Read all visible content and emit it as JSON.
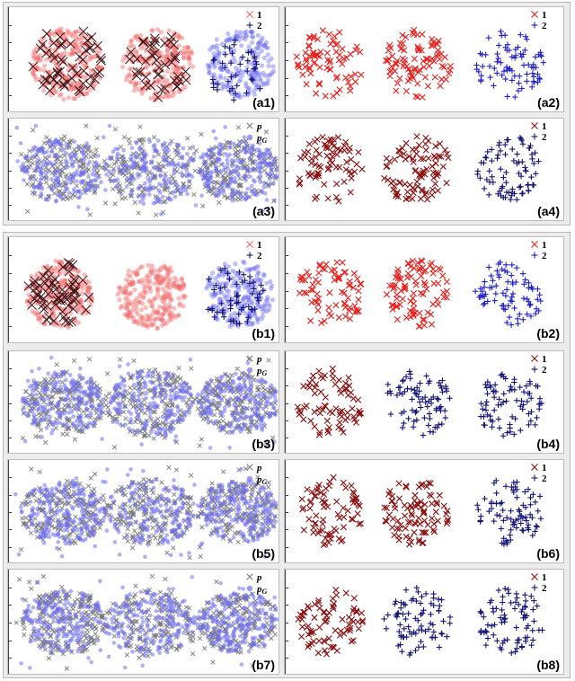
{
  "colors": {
    "red_light": "#f26a6a",
    "red": "#e8201e",
    "dark_red": "#8b1010",
    "dark_x": "#3a0d10",
    "blue": "#2020c8",
    "blue_light": "#6f6ff0",
    "navy": "#14147a",
    "gray": "#777777"
  },
  "chart_data": [
    {
      "panel": "a1",
      "label": "(a1)",
      "type": "scatter",
      "legend": [
        "1",
        "2"
      ],
      "clusters": [
        {
          "marker": "dot",
          "color": "red_light"
        },
        {
          "marker": "x",
          "color": "dark_x"
        },
        {
          "marker": "dot",
          "color": "red_light"
        },
        {
          "marker": "x",
          "color": "dark_x"
        },
        {
          "marker": "dot",
          "color": "blue_light"
        },
        {
          "marker": "plus",
          "color": "navy"
        }
      ]
    },
    {
      "panel": "a2",
      "label": "(a2)",
      "type": "scatter",
      "legend": [
        "1",
        "2"
      ],
      "clusters": [
        {
          "marker": "x",
          "color": "red"
        },
        {
          "marker": "x",
          "color": "red"
        },
        {
          "marker": "plus",
          "color": "blue"
        }
      ]
    },
    {
      "panel": "a3",
      "label": "(a3)",
      "type": "scatter",
      "legend": [
        "p",
        "pG"
      ],
      "clusters": [
        {
          "marker": "x",
          "color": "gray"
        },
        {
          "marker": "dot",
          "color": "blue_light"
        }
      ]
    },
    {
      "panel": "a4",
      "label": "(a4)",
      "type": "scatter",
      "legend": [
        "1",
        "2"
      ],
      "clusters": [
        {
          "marker": "x",
          "color": "dark_red"
        },
        {
          "marker": "x",
          "color": "dark_red"
        },
        {
          "marker": "plus",
          "color": "navy"
        }
      ]
    },
    {
      "panel": "b1",
      "label": "(b1)",
      "type": "scatter",
      "legend": [
        "1",
        "2"
      ],
      "clusters": [
        {
          "marker": "dot",
          "color": "red_light"
        },
        {
          "marker": "x",
          "color": "dark_x"
        },
        {
          "marker": "dot",
          "color": "red_light"
        },
        {
          "marker": "dot",
          "color": "blue_light"
        },
        {
          "marker": "plus",
          "color": "navy"
        }
      ]
    },
    {
      "panel": "b2",
      "label": "(b2)",
      "type": "scatter",
      "legend": [
        "1",
        "2"
      ],
      "clusters": [
        {
          "marker": "x",
          "color": "red"
        },
        {
          "marker": "x",
          "color": "red"
        },
        {
          "marker": "plus",
          "color": "blue"
        }
      ]
    },
    {
      "panel": "b3",
      "label": "(b3)",
      "type": "scatter",
      "legend": [
        "p",
        "pG"
      ],
      "clusters": [
        {
          "marker": "x",
          "color": "gray"
        },
        {
          "marker": "dot",
          "color": "blue_light"
        }
      ]
    },
    {
      "panel": "b4",
      "label": "(b4)",
      "type": "scatter",
      "legend": [
        "1",
        "2"
      ],
      "clusters": [
        {
          "marker": "x",
          "color": "dark_red"
        },
        {
          "marker": "plus",
          "color": "navy"
        },
        {
          "marker": "plus",
          "color": "navy"
        }
      ]
    },
    {
      "panel": "b5",
      "label": "(b5)",
      "type": "scatter",
      "legend": [
        "p",
        "pG"
      ],
      "clusters": [
        {
          "marker": "x",
          "color": "gray"
        },
        {
          "marker": "dot",
          "color": "blue_light"
        }
      ]
    },
    {
      "panel": "b6",
      "label": "(b6)",
      "type": "scatter",
      "legend": [
        "1",
        "2"
      ],
      "clusters": [
        {
          "marker": "x",
          "color": "dark_red"
        },
        {
          "marker": "x",
          "color": "dark_red"
        },
        {
          "marker": "plus",
          "color": "navy"
        }
      ]
    },
    {
      "panel": "b7",
      "label": "(b7)",
      "type": "scatter",
      "legend": [
        "p",
        "pG"
      ],
      "clusters": [
        {
          "marker": "x",
          "color": "gray"
        },
        {
          "marker": "dot",
          "color": "blue_light"
        }
      ]
    },
    {
      "panel": "b8",
      "label": "(b8)",
      "type": "scatter",
      "legend": [
        "1",
        "2"
      ],
      "clusters": [
        {
          "marker": "x",
          "color": "dark_red"
        },
        {
          "marker": "plus",
          "color": "navy"
        },
        {
          "marker": "plus",
          "color": "navy"
        }
      ]
    }
  ]
}
